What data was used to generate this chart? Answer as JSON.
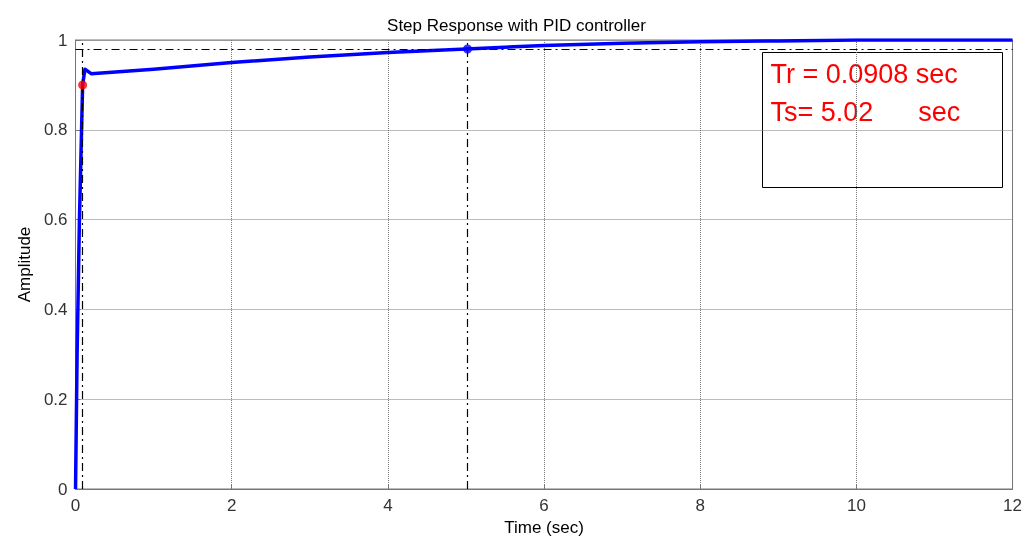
{
  "chart_data": {
    "type": "line",
    "title": "Step Response with PID controller",
    "xlabel": "Time (sec)",
    "ylabel": "Amplitude",
    "xlim": [
      0,
      12
    ],
    "xticks": [
      0,
      2,
      4,
      6,
      8,
      10,
      12
    ],
    "ylim": [
      0,
      1
    ],
    "yticks": [
      0,
      0.2,
      0.4,
      0.6,
      0.8,
      1
    ],
    "grid": true,
    "series": [
      {
        "type": "line",
        "color": "#0000ff",
        "marker": "none",
        "line_style": "solid",
        "x": [
          0,
          0.02,
          0.05,
          0.0908,
          0.12,
          0.2,
          1,
          2,
          3,
          4,
          5,
          6,
          7,
          8,
          9,
          10,
          12
        ],
        "values": [
          0,
          0.3,
          0.6,
          0.9,
          0.935,
          0.925,
          0.935,
          0.95,
          0.962,
          0.972,
          0.98,
          0.988,
          0.993,
          0.996,
          0.998,
          1,
          1
        ]
      },
      {
        "type": "scatter",
        "color": "#ff0000",
        "marker": "circle",
        "x": [
          0.0908
        ],
        "values": [
          0.9
        ]
      },
      {
        "type": "scatter",
        "color": "#0000ff",
        "marker": "circle",
        "x": [
          5.02
        ],
        "values": [
          0.98
        ]
      }
    ],
    "ref_lines": [
      {
        "axis": "x",
        "value": 0.0908,
        "color": "#000000",
        "line_style": "dashed"
      },
      {
        "axis": "x",
        "value": 5.02,
        "color": "#000000",
        "line_style": "dashed"
      },
      {
        "axis": "y",
        "value": 0.98,
        "color": "#000000",
        "line_style": "dashed"
      }
    ],
    "annotations": [
      "Tr = 0.0908 sec",
      "Ts= 5.02      sec"
    ]
  }
}
